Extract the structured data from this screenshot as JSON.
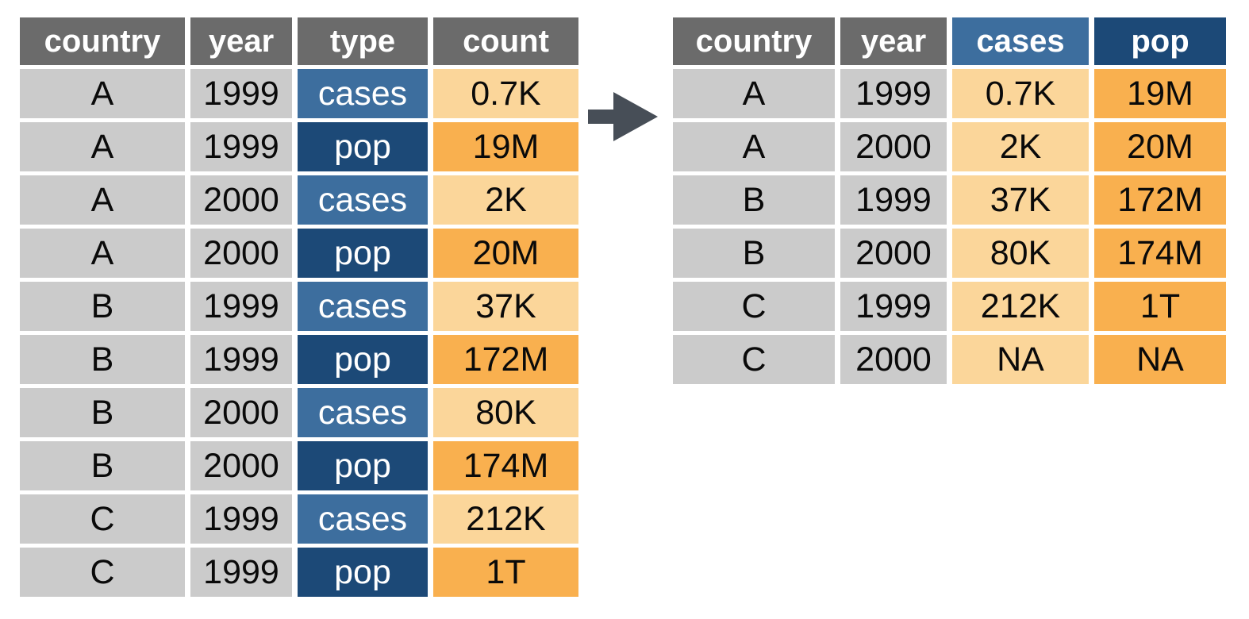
{
  "colors": {
    "header_gray": "#6b6b6b",
    "cell_gray": "#cbcbcb",
    "blue_mid": "#3d6e9e",
    "blue_dark": "#1c4977",
    "orange_light": "#fbd69a",
    "orange_dark": "#f9b04f",
    "arrow": "#474e57",
    "background": "#ffffff",
    "text_black": "#0a0a0a",
    "text_white": "#ffffff"
  },
  "arrow": {
    "icon": "right-arrow",
    "direction": "right"
  },
  "left_table": {
    "name": "long-format-table",
    "headers": [
      {
        "text": "country",
        "style": "gray"
      },
      {
        "text": "year",
        "style": "gray"
      },
      {
        "text": "type",
        "style": "gray"
      },
      {
        "text": "count",
        "style": "gray"
      }
    ],
    "rows": [
      [
        {
          "text": "A",
          "style": "gray"
        },
        {
          "text": "1999",
          "style": "gray"
        },
        {
          "text": "cases",
          "style": "blue-mid"
        },
        {
          "text": "0.7K",
          "style": "orange-light"
        }
      ],
      [
        {
          "text": "A",
          "style": "gray"
        },
        {
          "text": "1999",
          "style": "gray"
        },
        {
          "text": "pop",
          "style": "blue-dark"
        },
        {
          "text": "19M",
          "style": "orange-dark"
        }
      ],
      [
        {
          "text": "A",
          "style": "gray"
        },
        {
          "text": "2000",
          "style": "gray"
        },
        {
          "text": "cases",
          "style": "blue-mid"
        },
        {
          "text": "2K",
          "style": "orange-light"
        }
      ],
      [
        {
          "text": "A",
          "style": "gray"
        },
        {
          "text": "2000",
          "style": "gray"
        },
        {
          "text": "pop",
          "style": "blue-dark"
        },
        {
          "text": "20M",
          "style": "orange-dark"
        }
      ],
      [
        {
          "text": "B",
          "style": "gray"
        },
        {
          "text": "1999",
          "style": "gray"
        },
        {
          "text": "cases",
          "style": "blue-mid"
        },
        {
          "text": "37K",
          "style": "orange-light"
        }
      ],
      [
        {
          "text": "B",
          "style": "gray"
        },
        {
          "text": "1999",
          "style": "gray"
        },
        {
          "text": "pop",
          "style": "blue-dark"
        },
        {
          "text": "172M",
          "style": "orange-dark"
        }
      ],
      [
        {
          "text": "B",
          "style": "gray"
        },
        {
          "text": "2000",
          "style": "gray"
        },
        {
          "text": "cases",
          "style": "blue-mid"
        },
        {
          "text": "80K",
          "style": "orange-light"
        }
      ],
      [
        {
          "text": "B",
          "style": "gray"
        },
        {
          "text": "2000",
          "style": "gray"
        },
        {
          "text": "pop",
          "style": "blue-dark"
        },
        {
          "text": "174M",
          "style": "orange-dark"
        }
      ],
      [
        {
          "text": "C",
          "style": "gray"
        },
        {
          "text": "1999",
          "style": "gray"
        },
        {
          "text": "cases",
          "style": "blue-mid"
        },
        {
          "text": "212K",
          "style": "orange-light"
        }
      ],
      [
        {
          "text": "C",
          "style": "gray"
        },
        {
          "text": "1999",
          "style": "gray"
        },
        {
          "text": "pop",
          "style": "blue-dark"
        },
        {
          "text": "1T",
          "style": "orange-dark"
        }
      ]
    ]
  },
  "right_table": {
    "name": "wide-format-table",
    "headers": [
      {
        "text": "country",
        "style": "gray"
      },
      {
        "text": "year",
        "style": "gray"
      },
      {
        "text": "cases",
        "style": "blue-mid"
      },
      {
        "text": "pop",
        "style": "blue-dark"
      }
    ],
    "rows": [
      [
        {
          "text": "A",
          "style": "gray"
        },
        {
          "text": "1999",
          "style": "gray"
        },
        {
          "text": "0.7K",
          "style": "orange-light"
        },
        {
          "text": "19M",
          "style": "orange-dark"
        }
      ],
      [
        {
          "text": "A",
          "style": "gray"
        },
        {
          "text": "2000",
          "style": "gray"
        },
        {
          "text": "2K",
          "style": "orange-light"
        },
        {
          "text": "20M",
          "style": "orange-dark"
        }
      ],
      [
        {
          "text": "B",
          "style": "gray"
        },
        {
          "text": "1999",
          "style": "gray"
        },
        {
          "text": "37K",
          "style": "orange-light"
        },
        {
          "text": "172M",
          "style": "orange-dark"
        }
      ],
      [
        {
          "text": "B",
          "style": "gray"
        },
        {
          "text": "2000",
          "style": "gray"
        },
        {
          "text": "80K",
          "style": "orange-light"
        },
        {
          "text": "174M",
          "style": "orange-dark"
        }
      ],
      [
        {
          "text": "C",
          "style": "gray"
        },
        {
          "text": "1999",
          "style": "gray"
        },
        {
          "text": "212K",
          "style": "orange-light"
        },
        {
          "text": "1T",
          "style": "orange-dark"
        }
      ],
      [
        {
          "text": "C",
          "style": "gray"
        },
        {
          "text": "2000",
          "style": "gray"
        },
        {
          "text": "NA",
          "style": "orange-light"
        },
        {
          "text": "NA",
          "style": "orange-dark"
        }
      ]
    ]
  }
}
